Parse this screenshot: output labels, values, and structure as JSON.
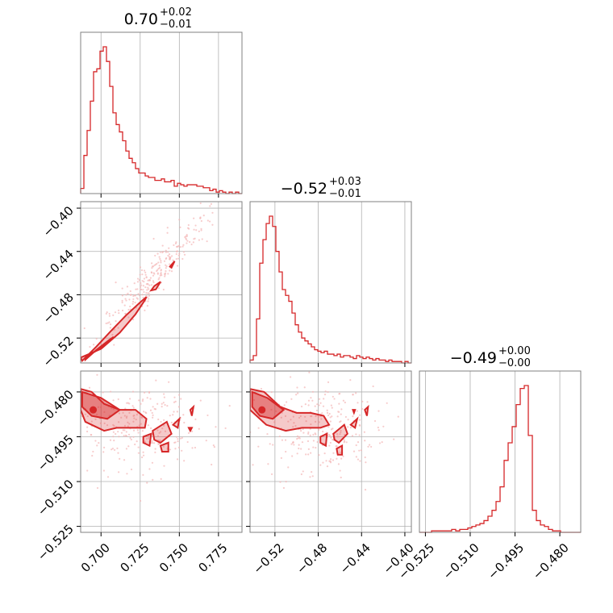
{
  "chart_data": {
    "type": "corner",
    "color": "#d62728",
    "parameters": [
      {
        "title_value": "0.70",
        "title_plus": "+0.02",
        "title_minus": "−0.01",
        "range": [
          0.687,
          0.79
        ],
        "ticks": [
          0.7,
          0.725,
          0.75,
          0.775
        ],
        "tick_labels": [
          "0.700",
          "0.725",
          "0.750",
          "0.775"
        ],
        "hist_bins": [
          0.035,
          0.26,
          0.43,
          0.63,
          0.83,
          0.85,
          0.97,
          1.0,
          0.9,
          0.73,
          0.55,
          0.47,
          0.42,
          0.36,
          0.29,
          0.24,
          0.21,
          0.17,
          0.14,
          0.14,
          0.12,
          0.11,
          0.11,
          0.09,
          0.09,
          0.1,
          0.08,
          0.08,
          0.09,
          0.05,
          0.07,
          0.06,
          0.05,
          0.06,
          0.06,
          0.06,
          0.05,
          0.05,
          0.04,
          0.04,
          0.02,
          0.03,
          0.01,
          0.02,
          0.01,
          0.0,
          0.01,
          0.0,
          0.01,
          0.0
        ]
      },
      {
        "title_value": "−0.52",
        "title_plus": "+0.03",
        "title_minus": "−0.01",
        "range": [
          -0.543,
          -0.394
        ],
        "ticks": [
          -0.52,
          -0.48,
          -0.44,
          -0.4
        ],
        "tick_labels": [
          "−0.52",
          "−0.48",
          "−0.44",
          "−0.40"
        ],
        "hist_bins": [
          0.02,
          0.05,
          0.3,
          0.68,
          0.84,
          0.95,
          1.0,
          0.93,
          0.76,
          0.62,
          0.5,
          0.46,
          0.42,
          0.34,
          0.26,
          0.21,
          0.17,
          0.15,
          0.13,
          0.11,
          0.09,
          0.08,
          0.07,
          0.08,
          0.06,
          0.06,
          0.05,
          0.06,
          0.04,
          0.05,
          0.05,
          0.04,
          0.03,
          0.05,
          0.04,
          0.03,
          0.04,
          0.03,
          0.02,
          0.03,
          0.02,
          0.02,
          0.01,
          0.02,
          0.01,
          0.01,
          0.01,
          0.0,
          0.01,
          0.0
        ]
      },
      {
        "title_value": "−0.49",
        "title_plus": "+0.00",
        "title_minus": "−0.00",
        "range": [
          -0.527,
          -0.473
        ],
        "ticks": [
          -0.525,
          -0.51,
          -0.495,
          -0.48
        ],
        "tick_labels": [
          "−0.525",
          "−0.510",
          "−0.495",
          "−0.480"
        ],
        "hist_bins": [
          0.0,
          0.0,
          0.0,
          0.01,
          0.01,
          0.01,
          0.01,
          0.01,
          0.02,
          0.01,
          0.02,
          0.02,
          0.03,
          0.04,
          0.05,
          0.06,
          0.08,
          0.11,
          0.15,
          0.21,
          0.31,
          0.49,
          0.61,
          0.72,
          0.87,
          0.98,
          1.0,
          0.66,
          0.15,
          0.08,
          0.05,
          0.04,
          0.02,
          0.01,
          0.01,
          0.0,
          0.0,
          0.0,
          0.0,
          0.0
        ]
      }
    ],
    "contours": [
      {
        "row": 1,
        "col": 0,
        "regions": [
          [
            [
              0.687,
              -0.538
            ],
            [
              0.7,
              -0.53
            ],
            [
              0.712,
              -0.515
            ],
            [
              0.722,
              -0.498
            ],
            [
              0.728,
              -0.485
            ],
            [
              0.729,
              -0.482
            ],
            [
              0.725,
              -0.487
            ],
            [
              0.716,
              -0.499
            ],
            [
              0.706,
              -0.514
            ],
            [
              0.697,
              -0.528
            ],
            [
              0.688,
              -0.541
            ]
          ],
          [
            [
              0.734,
              -0.472
            ],
            [
              0.738,
              -0.468
            ],
            [
              0.735,
              -0.475
            ],
            [
              0.732,
              -0.476
            ]
          ],
          [
            [
              0.744,
              -0.454
            ],
            [
              0.747,
              -0.449
            ],
            [
              0.745,
              -0.455
            ]
          ]
        ],
        "inner": [
          [
            [
              0.69,
              -0.538
            ],
            [
              0.7,
              -0.529
            ],
            [
              0.708,
              -0.519
            ],
            [
              0.705,
              -0.522
            ],
            [
              0.697,
              -0.531
            ],
            [
              0.69,
              -0.54
            ]
          ]
        ],
        "scatter_center": [
          0.735,
          -0.465
        ],
        "scatter_spread": [
          0.03,
          0.04
        ]
      },
      {
        "row": 2,
        "col": 0,
        "regions": [
          [
            [
              0.687,
              -0.479
            ],
            [
              0.694,
              -0.48
            ],
            [
              0.702,
              -0.484
            ],
            [
              0.712,
              -0.486
            ],
            [
              0.722,
              -0.486
            ],
            [
              0.729,
              -0.489
            ],
            [
              0.728,
              -0.492
            ],
            [
              0.719,
              -0.492
            ],
            [
              0.71,
              -0.492
            ],
            [
              0.702,
              -0.493
            ],
            [
              0.69,
              -0.49
            ],
            [
              0.687,
              -0.486
            ]
          ],
          [
            [
              0.733,
              -0.493
            ],
            [
              0.742,
              -0.49
            ],
            [
              0.745,
              -0.494
            ],
            [
              0.738,
              -0.497
            ],
            [
              0.734,
              -0.496
            ]
          ],
          [
            [
              0.727,
              -0.495
            ],
            [
              0.732,
              -0.494
            ],
            [
              0.731,
              -0.498
            ],
            [
              0.727,
              -0.497
            ]
          ],
          [
            [
              0.738,
              -0.498
            ],
            [
              0.743,
              -0.497
            ],
            [
              0.743,
              -0.5
            ],
            [
              0.739,
              -0.5
            ]
          ],
          [
            [
              0.746,
              -0.491
            ],
            [
              0.75,
              -0.489
            ],
            [
              0.749,
              -0.492
            ]
          ],
          [
            [
              0.757,
              -0.486
            ],
            [
              0.759,
              -0.485
            ],
            [
              0.758,
              -0.488
            ]
          ],
          [
            [
              0.756,
              -0.492
            ],
            [
              0.758,
              -0.492
            ],
            [
              0.757,
              -0.493
            ]
          ]
        ],
        "inner": [
          [
            [
              0.688,
              -0.48
            ],
            [
              0.7,
              -0.482
            ],
            [
              0.712,
              -0.486
            ],
            [
              0.704,
              -0.489
            ],
            [
              0.694,
              -0.488
            ],
            [
              0.688,
              -0.485
            ]
          ]
        ],
        "core": [
          0.695,
          -0.486
        ],
        "scatter_center": [
          0.725,
          -0.492
        ],
        "scatter_spread": [
          0.03,
          0.011
        ]
      },
      {
        "row": 2,
        "col": 1,
        "regions": [
          [
            [
              -0.543,
              -0.479
            ],
            [
              -0.53,
              -0.48
            ],
            [
              -0.515,
              -0.485
            ],
            [
              -0.5,
              -0.487
            ],
            [
              -0.487,
              -0.487
            ],
            [
              -0.475,
              -0.488
            ],
            [
              -0.47,
              -0.491
            ],
            [
              -0.478,
              -0.492
            ],
            [
              -0.495,
              -0.492
            ],
            [
              -0.51,
              -0.493
            ],
            [
              -0.528,
              -0.491
            ],
            [
              -0.543,
              -0.486
            ]
          ],
          [
            [
              -0.466,
              -0.494
            ],
            [
              -0.456,
              -0.491
            ],
            [
              -0.453,
              -0.494
            ],
            [
              -0.461,
              -0.497
            ],
            [
              -0.465,
              -0.496
            ]
          ],
          [
            [
              -0.478,
              -0.495
            ],
            [
              -0.472,
              -0.494
            ],
            [
              -0.473,
              -0.498
            ],
            [
              -0.478,
              -0.497
            ]
          ],
          [
            [
              -0.463,
              -0.499
            ],
            [
              -0.458,
              -0.498
            ],
            [
              -0.458,
              -0.501
            ],
            [
              -0.462,
              -0.501
            ]
          ],
          [
            [
              -0.45,
              -0.491
            ],
            [
              -0.444,
              -0.489
            ],
            [
              -0.446,
              -0.492
            ]
          ],
          [
            [
              -0.437,
              -0.486
            ],
            [
              -0.434,
              -0.485
            ],
            [
              -0.435,
              -0.488
            ]
          ],
          [
            [
              -0.448,
              -0.486
            ],
            [
              -0.446,
              -0.486
            ],
            [
              -0.447,
              -0.487
            ]
          ]
        ],
        "inner": [
          [
            [
              -0.541,
              -0.48
            ],
            [
              -0.527,
              -0.482
            ],
            [
              -0.512,
              -0.486
            ],
            [
              -0.522,
              -0.489
            ],
            [
              -0.534,
              -0.488
            ],
            [
              -0.541,
              -0.485
            ]
          ]
        ],
        "core": [
          -0.532,
          -0.486
        ],
        "scatter_center": [
          -0.48,
          -0.492
        ],
        "scatter_spread": [
          0.04,
          0.011
        ]
      }
    ]
  }
}
